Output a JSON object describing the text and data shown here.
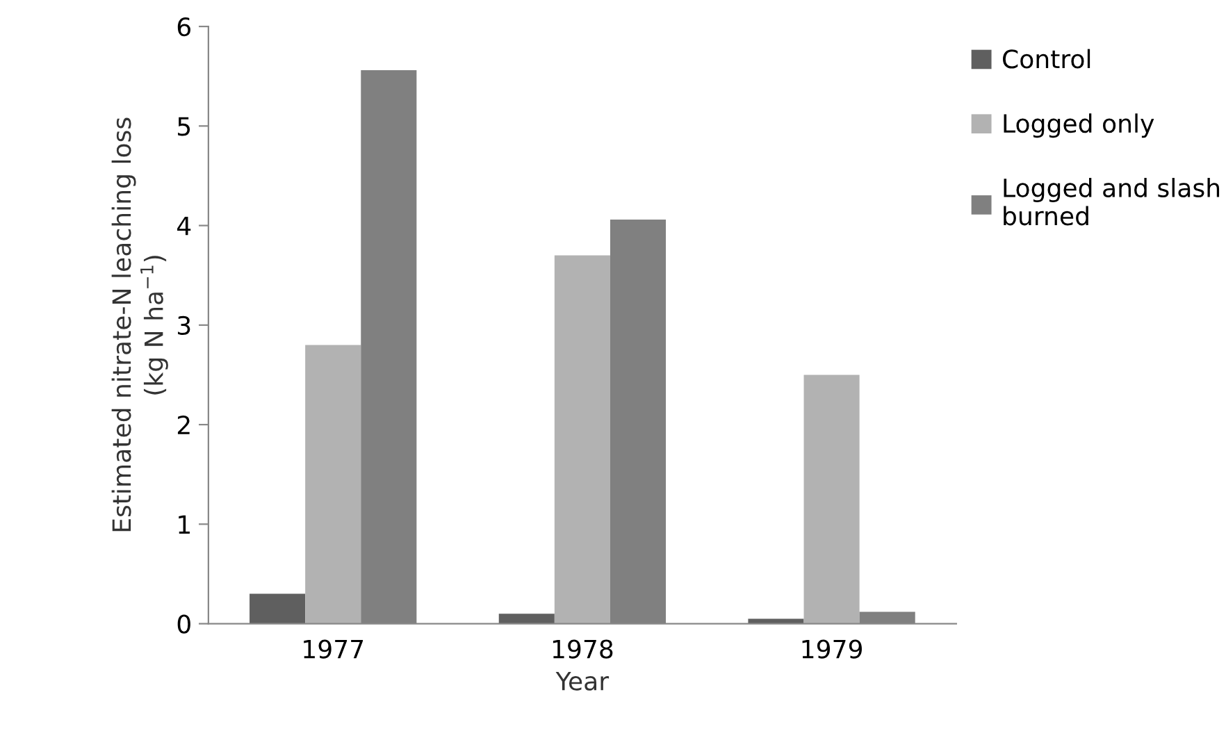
{
  "chart_data": {
    "type": "bar",
    "xlabel": "Year",
    "ylabel": "Estimated nitrate-N leaching loss\n(kg N ha$^{−1}$)",
    "categories": [
      "1977",
      "1978",
      "1979"
    ],
    "series": [
      {
        "name": "Control",
        "color": "#5f5f5f",
        "values": [
          0.3,
          0.1,
          0.05
        ]
      },
      {
        "name": "Logged only",
        "color": "#b2b2b2",
        "values": [
          2.8,
          3.7,
          2.5
        ]
      },
      {
        "name": "Logged and slash\nburned",
        "color": "#808080",
        "values": [
          5.56,
          4.06,
          0.12
        ]
      }
    ],
    "ylim": [
      0,
      6
    ],
    "yticks": [
      0,
      1,
      2,
      3,
      4,
      5,
      6
    ],
    "grid": false,
    "legend": "right"
  }
}
